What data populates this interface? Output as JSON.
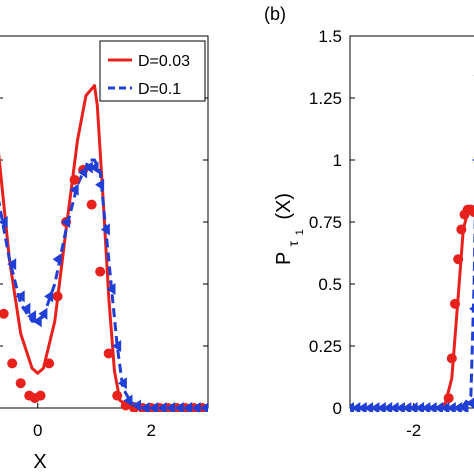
{
  "chart_data": [
    {
      "type": "line",
      "panel_label": "",
      "xlabel": "X",
      "ylabel": "",
      "x_ticks": [
        "0",
        "2"
      ],
      "xlim": [
        -0.7,
        3.0
      ],
      "ylim": [
        0,
        1.5
      ],
      "legend": {
        "placement": "top-right",
        "entries": [
          "D=0.03",
          "D=0.1"
        ]
      },
      "series": [
        {
          "name": "D=0.03",
          "style": "solid",
          "color": "#e8211d",
          "x": [
            -0.7,
            -0.5,
            -0.3,
            -0.1,
            0.0,
            0.1,
            0.3,
            0.5,
            0.7,
            0.85,
            1.0,
            1.05,
            1.15,
            1.25,
            1.35,
            1.45,
            1.6,
            2.0,
            3.0
          ],
          "y": [
            1.05,
            0.6,
            0.3,
            0.16,
            0.14,
            0.16,
            0.35,
            0.72,
            1.08,
            1.26,
            1.3,
            1.22,
            0.85,
            0.45,
            0.15,
            0.03,
            0.01,
            0.0,
            0.0
          ]
        },
        {
          "name": "D=0.1",
          "style": "dashed",
          "color": "#1f3fd6",
          "x": [
            -0.7,
            -0.5,
            -0.3,
            -0.1,
            0.0,
            0.1,
            0.3,
            0.5,
            0.7,
            0.9,
            1.0,
            1.1,
            1.25,
            1.4,
            1.5,
            1.65,
            2.0,
            3.0
          ],
          "y": [
            0.85,
            0.6,
            0.42,
            0.35,
            0.35,
            0.37,
            0.5,
            0.72,
            0.9,
            1.0,
            1.0,
            0.95,
            0.6,
            0.25,
            0.08,
            0.02,
            0.0,
            0.0
          ]
        },
        {
          "name": "",
          "style": "markers-circle",
          "color": "#e8211d",
          "x": [
            -0.6,
            -0.45,
            -0.3,
            -0.15,
            -0.05,
            0.05,
            0.2,
            0.35,
            0.5,
            0.65,
            0.8,
            0.95,
            1.1,
            1.25,
            1.4,
            1.55,
            1.7,
            1.85,
            2.0,
            2.15,
            2.3,
            2.45,
            2.6,
            2.75,
            2.9
          ],
          "y": [
            0.38,
            0.18,
            0.1,
            0.05,
            0.04,
            0.05,
            0.18,
            0.45,
            0.75,
            0.92,
            0.96,
            0.82,
            0.55,
            0.22,
            0.05,
            0.01,
            0.0,
            0.0,
            0.0,
            0.0,
            0.0,
            0.0,
            0.0,
            0.0,
            0.0
          ]
        },
        {
          "name": "",
          "style": "markers-triangle",
          "color": "#1f3fd6",
          "x": [
            -0.6,
            -0.45,
            -0.3,
            -0.2,
            -0.1,
            0.0,
            0.1,
            0.2,
            0.35,
            0.5,
            0.65,
            0.8,
            0.9,
            1.0,
            1.1,
            1.2,
            1.3,
            1.4,
            1.5,
            1.6,
            1.75,
            1.9,
            2.05,
            2.2,
            2.35,
            2.5,
            2.65,
            2.8,
            2.95
          ],
          "y": [
            0.75,
            0.58,
            0.45,
            0.4,
            0.37,
            0.35,
            0.38,
            0.45,
            0.6,
            0.75,
            0.88,
            0.95,
            0.97,
            0.97,
            0.9,
            0.72,
            0.48,
            0.25,
            0.1,
            0.03,
            0.01,
            0.0,
            0.0,
            0.0,
            0.0,
            0.0,
            0.0,
            0.0,
            0.0
          ]
        }
      ]
    },
    {
      "type": "line",
      "panel_label": "(b)",
      "xlabel": "",
      "ylabel_main": "P",
      "ylabel_sub": "τ",
      "ylabel_subsub": "1",
      "ylabel_tail": "(X)",
      "x_ticks": [
        "-2"
      ],
      "y_ticks": [
        "0",
        "0.25",
        "0.5",
        "0.75",
        "1",
        "1.25",
        "1.5"
      ],
      "xlim": [
        -3.0,
        -0.8
      ],
      "ylim": [
        0,
        1.5
      ],
      "series": [
        {
          "name": "",
          "style": "solid",
          "color": "#e8211d",
          "x": [
            -3.0,
            -1.6,
            -1.5,
            -1.4,
            -1.3,
            -1.22,
            -1.15,
            -1.08,
            -1.0,
            -0.95
          ],
          "y": [
            0.0,
            0.0,
            0.02,
            0.12,
            0.45,
            0.72,
            0.79,
            0.8,
            0.79,
            0.78
          ]
        },
        {
          "name": "",
          "style": "dashed",
          "color": "#1f3fd6",
          "x": [
            -3.0,
            -1.25,
            -1.1,
            -1.05,
            -1.0,
            -0.98,
            -0.95
          ],
          "y": [
            0.0,
            0.0,
            0.05,
            0.5,
            1.25,
            1.36,
            1.1
          ]
        },
        {
          "name": "",
          "style": "markers-circle",
          "color": "#e8211d",
          "x": [
            -1.45,
            -1.4,
            -1.35,
            -1.3,
            -1.25,
            -1.2,
            -1.15,
            -1.1,
            -1.05
          ],
          "y": [
            0.04,
            0.2,
            0.42,
            0.6,
            0.72,
            0.78,
            0.8,
            0.8,
            0.79
          ]
        },
        {
          "name": "",
          "style": "markers-triangle",
          "color": "#1f3fd6",
          "x": [
            -3.0,
            -2.9,
            -2.8,
            -2.7,
            -2.6,
            -2.5,
            -2.4,
            -2.3,
            -2.2,
            -2.1,
            -2.0,
            -1.9,
            -1.8,
            -1.7,
            -1.6,
            -1.5,
            -1.4,
            -1.3,
            -1.2,
            -1.1,
            -1.05,
            -1.0,
            -0.98,
            -0.96
          ],
          "y": [
            0.0,
            0.0,
            0.0,
            0.0,
            0.0,
            0.0,
            0.0,
            0.0,
            0.0,
            0.0,
            0.0,
            0.0,
            0.0,
            0.0,
            0.0,
            0.0,
            0.0,
            0.0,
            0.0,
            0.02,
            0.4,
            1.0,
            1.34,
            1.2
          ]
        }
      ]
    }
  ]
}
